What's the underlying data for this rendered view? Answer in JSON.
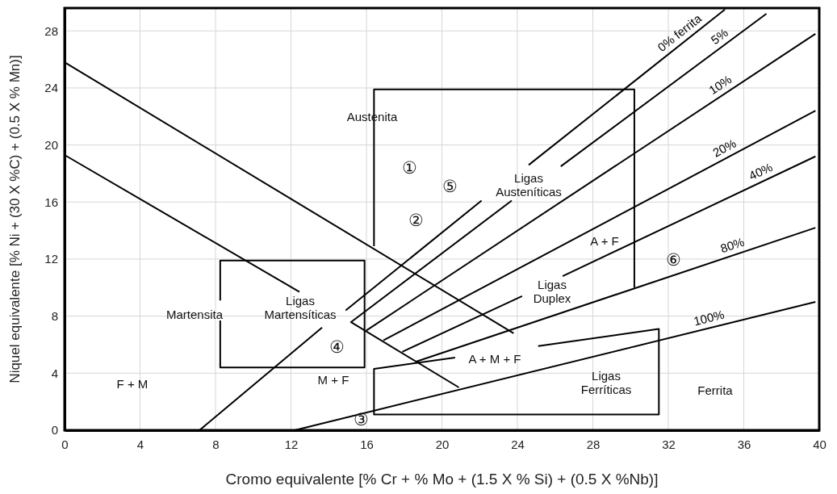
{
  "chart_data": {
    "type": "line",
    "xlabel": "Cromo equivalente [% Cr + % Mo + (1.5 X % Si) + (0.5 X %Nb)]",
    "ylabel": "Niquel equivalente [% Ni + (30 X %C) + (0.5 X % Mn)]",
    "xlim": [
      0,
      40
    ],
    "ylim": [
      0,
      29.6
    ],
    "xticks": [
      0,
      4,
      8,
      12,
      16,
      20,
      24,
      28,
      32,
      36,
      40
    ],
    "yticks": [
      0,
      4,
      8,
      12,
      16,
      20,
      24,
      28
    ],
    "grid": true,
    "marker": "none",
    "line_style": "solid",
    "series": [
      {
        "color": "#000000",
        "x": [
          0,
          23.8
        ],
        "values": [
          25.8,
          6.8
        ]
      },
      {
        "color": "#000000",
        "x": [
          0,
          12.45,
          13.8,
          15.15,
          20.9
        ],
        "values": [
          19.3,
          9.7,
          null,
          7.6,
          3.0
        ]
      },
      {
        "name": "0% ferrita",
        "color": "#000000",
        "x": [
          7.15,
          13.65,
          14.3,
          14.9,
          22.1,
          23.3,
          24.6,
          35.0
        ],
        "values": [
          0,
          7.2,
          null,
          8.4,
          16.1,
          null,
          18.6,
          29.5
        ]
      },
      {
        "name": "5%",
        "color": "#000000",
        "x": [
          15.2,
          23.7,
          25.0,
          26.3,
          37.2
        ],
        "values": [
          7.6,
          16.1,
          null,
          18.5,
          29.2
        ]
      },
      {
        "name": "10%",
        "color": "#000000",
        "x": [
          16.0,
          39.8
        ],
        "values": [
          7.0,
          27.8
        ]
      },
      {
        "name": "20%",
        "color": "#000000",
        "x": [
          16.9,
          39.8
        ],
        "values": [
          6.3,
          22.4
        ]
      },
      {
        "name": "40%",
        "color": "#000000",
        "x": [
          17.9,
          24.25,
          25.3,
          26.4,
          39.8
        ],
        "values": [
          5.5,
          9.4,
          null,
          10.8,
          19.2
        ]
      },
      {
        "name": "80%",
        "color": "#000000",
        "x": [
          18.6,
          39.8
        ],
        "values": [
          4.8,
          14.2
        ]
      },
      {
        "name": "100%",
        "color": "#000000",
        "x": [
          12.2,
          39.8
        ],
        "values": [
          0,
          9.0
        ]
      },
      {
        "color": "#000000",
        "x": [
          16.4,
          16.4,
          30.2,
          30.2
        ],
        "values": [
          12.9,
          23.9,
          23.9,
          10.0
        ]
      },
      {
        "color": "#000000",
        "x": [
          8.25,
          8.25,
          15.9,
          15.9,
          8.25,
          8.25
        ],
        "values": [
          9.1,
          11.9,
          11.9,
          4.4,
          4.4,
          7.7
        ]
      },
      {
        "color": "#000000",
        "x": [
          20.7,
          16.4,
          16.4,
          31.5,
          31.5,
          25.1
        ],
        "values": [
          5.1,
          4.3,
          1.1,
          1.1,
          7.1,
          5.9
        ]
      }
    ],
    "annotations": [
      "Austenita",
      "①",
      "⑤",
      "②",
      "④",
      "③",
      "⑥",
      "Ligas\nAusteníticas",
      "A + F",
      "Ligas\nDuplex",
      "A + M + F",
      "Ligas\nFerríticas",
      "Ferrita",
      "M + F",
      "F + M",
      "Martensita",
      "Ligas\nMartensíticas"
    ]
  }
}
